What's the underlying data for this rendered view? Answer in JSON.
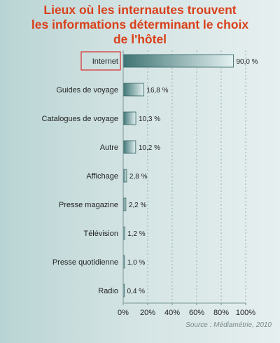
{
  "chart_data": {
    "type": "bar",
    "orientation": "horizontal",
    "title_lines": [
      "Lieux où les internautes trouvent",
      "les informations déterminant le choix",
      "de l'hôtel"
    ],
    "categories": [
      "Internet",
      "Guides de voyage",
      "Catalogues de voyage",
      "Autre",
      "Affichage",
      "Presse magazine",
      "Télévision",
      "Presse quotidienne",
      "Radio"
    ],
    "values": [
      90.0,
      16.8,
      10.3,
      10.2,
      2.8,
      2.2,
      1.2,
      1.0,
      0.4
    ],
    "value_labels": [
      "90,0 %",
      "16,8 %",
      "10,3 %",
      "10,2 %",
      "2,8 %",
      "2,2 %",
      "1,2 %",
      "1,0 %",
      "0,4 %"
    ],
    "xlim": [
      0,
      100
    ],
    "x_ticks": [
      "0%",
      "20%",
      "40%",
      "60%",
      "80%",
      "100%"
    ],
    "x_tick_values": [
      0,
      20,
      40,
      60,
      80,
      100
    ],
    "grid": "vertical dashed",
    "highlighted_category": "Internet",
    "source": "Source : Médiamétrie, 2010",
    "colors": {
      "title": "#d9401a",
      "bar_dark": "#3f7474",
      "bar_light": "#e3f0f0",
      "highlight_box": "#d82c2c"
    }
  }
}
